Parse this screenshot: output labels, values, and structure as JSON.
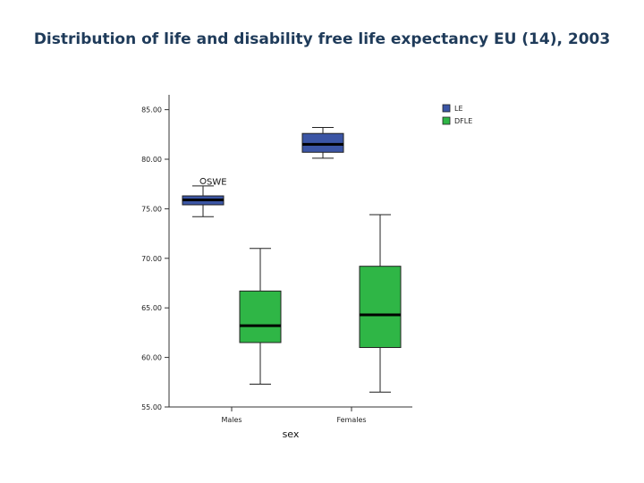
{
  "page": {
    "title": "Distribution of life and disability free life expectancy EU (14), 2003"
  },
  "chart_data": {
    "type": "box",
    "title": "Distribution of life and disability free life expectancy EU (14), 2003",
    "xlabel": "sex",
    "ylabel": "",
    "categories": [
      "Males",
      "Females"
    ],
    "ylim": [
      55,
      85
    ],
    "yticks": [
      85,
      80,
      75,
      70,
      65,
      60,
      55
    ],
    "ytick_labels": [
      "85.00",
      "80.00",
      "75.00",
      "70.00",
      "65.00",
      "60.00",
      "55.00"
    ],
    "legend_placement": "top-right",
    "grid": false,
    "series": [
      {
        "name": "LE",
        "color": "#3b55a5",
        "boxes": [
          {
            "category": "Males",
            "min": 74.2,
            "q1": 75.4,
            "median": 75.9,
            "q3": 76.3,
            "max": 77.3
          },
          {
            "category": "Females",
            "min": 80.1,
            "q1": 80.7,
            "median": 81.5,
            "q3": 82.6,
            "max": 83.2
          }
        ],
        "outliers": [
          {
            "category": "Males",
            "value": 77.8,
            "label": "SWE"
          }
        ]
      },
      {
        "name": "DFLE",
        "color": "#2fb646",
        "boxes": [
          {
            "category": "Males",
            "min": 57.3,
            "q1": 61.5,
            "median": 63.2,
            "q3": 66.7,
            "max": 71.0
          },
          {
            "category": "Females",
            "min": 56.5,
            "q1": 61.0,
            "median": 64.3,
            "q3": 69.2,
            "max": 74.4
          }
        ],
        "outliers": []
      }
    ]
  }
}
